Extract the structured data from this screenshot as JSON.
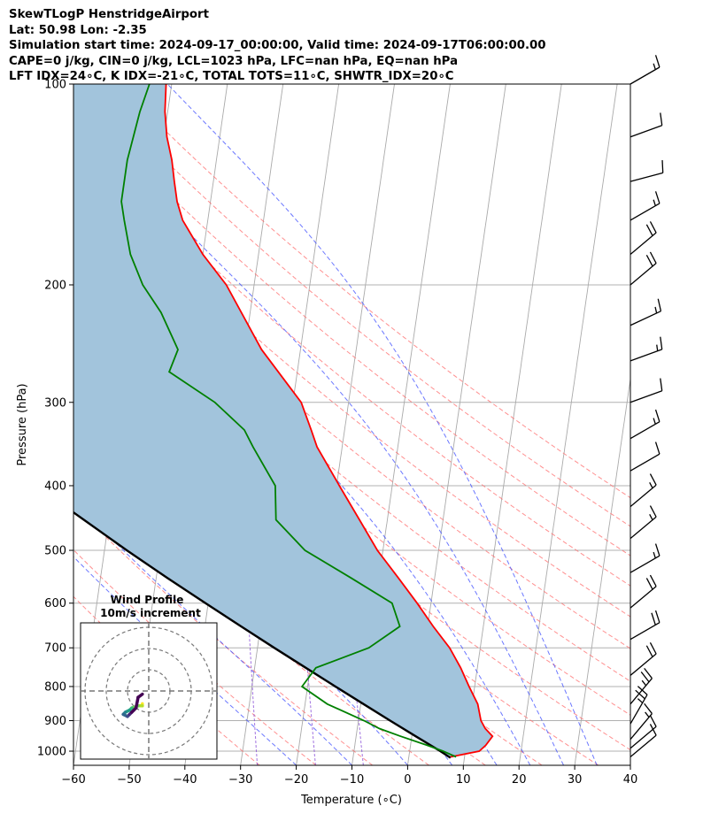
{
  "header": {
    "line1": "SkewTLogP HenstridgeAirport",
    "line2": "Lat: 50.98   Lon: -2.35",
    "line3": "Simulation start time: 2024-09-17_00:00:00, Valid time: 2024-09-17T06:00:00.00",
    "line4": "CAPE=0 j/kg, CIN=0 j/kg, LCL=1023 hPa, LFC=nan hPa, EQ=nan hPa",
    "line5": "LFT IDX=24∘C, K IDX=-21∘C, TOTAL TOTS=11∘C, SHWTR_IDX=20∘C"
  },
  "chart_data": {
    "type": "line",
    "subtype": "skew-t log-p",
    "xlabel": "Temperature (∘C)",
    "ylabel": "Pressure (hPa)",
    "xlim": [
      -60,
      40
    ],
    "ylim": [
      1050,
      100
    ],
    "y_scale": "log",
    "x_ticks": [
      "−60",
      "−50",
      "−40",
      "−30",
      "−20",
      "−10",
      "0",
      "10",
      "20",
      "30",
      "40"
    ],
    "y_ticks": [
      "100",
      "200",
      "300",
      "400",
      "500",
      "600",
      "700",
      "800",
      "900",
      "1000"
    ],
    "grid": true,
    "colors": {
      "temperature": "#ff0000",
      "dewpoint": "#008000",
      "parcel": "#000000",
      "cape_fill": "#a2c4dc",
      "dry_adiabat": "#ff6b6b",
      "moist_adiabat": "#3b4bff",
      "mixing_ratio": "#8a4fd8",
      "isotherm": "#aaaaaa"
    },
    "series": [
      {
        "p": [
          1020,
          1000,
          980,
          950,
          925,
          900,
          850,
          800,
          750,
          700,
          650,
          600,
          550,
          500,
          450,
          400,
          350,
          330,
          300,
          250,
          200,
          180,
          160,
          150,
          140,
          130,
          120,
          110,
          100
        ],
        "t": [
          7.5,
          12.5,
          13.5,
          14.5,
          13,
          12,
          11,
          9,
          7,
          4.5,
          1,
          -2.5,
          -6.5,
          -11,
          -15,
          -19.5,
          -24.5,
          -26,
          -28.5,
          -37,
          -45,
          -50,
          -54.5,
          -56,
          -57,
          -58,
          -59.5,
          -60.5,
          -61
        ]
      },
      {
        "p": [
          1020,
          1000,
          980,
          950,
          925,
          900,
          850,
          800,
          750,
          700,
          650,
          600,
          550,
          500,
          450,
          400,
          350,
          330,
          300,
          270,
          250,
          220,
          200,
          180,
          160,
          150,
          130,
          110,
          100
        ],
        "td": [
          8.5,
          6,
          3,
          -2,
          -6,
          -9,
          -16,
          -21,
          -19,
          -10,
          -5,
          -7,
          -15,
          -24,
          -30,
          -31,
          -36,
          -38,
          -44,
          -53,
          -52,
          -56,
          -60,
          -63,
          -65,
          -66,
          -66,
          -65,
          -64
        ]
      },
      {
        "p": [
          1023,
          1000,
          950,
          900,
          850,
          800,
          750,
          700,
          650,
          600,
          550,
          500,
          450,
          400,
          350,
          300,
          250,
          200,
          150,
          100
        ],
        "parcel": [
          7.5,
          5.5,
          0.7,
          -4.3,
          -9.5,
          -15,
          -20.8,
          -27.0,
          -33.5,
          -40.5,
          -48,
          -56,
          -64.5,
          -74,
          -84.5,
          -96.5,
          -110.5,
          -127.5,
          -149,
          -178
        ]
      }
    ],
    "wind_barbs": {
      "p": [
        100,
        120,
        140,
        160,
        180,
        200,
        230,
        260,
        300,
        340,
        380,
        430,
        480,
        540,
        610,
        680,
        770,
        850,
        910,
        960,
        990,
        1020
      ],
      "speed_kt": [
        15,
        10,
        10,
        15,
        20,
        20,
        15,
        15,
        10,
        15,
        10,
        15,
        15,
        15,
        20,
        20,
        20,
        25,
        25,
        15,
        10,
        10
      ],
      "direction_deg": [
        240,
        250,
        255,
        240,
        230,
        230,
        245,
        250,
        250,
        240,
        240,
        230,
        230,
        240,
        230,
        240,
        230,
        220,
        210,
        220,
        230,
        230
      ]
    },
    "hodograph": {
      "title": "Wind Profile",
      "subtitle": "10m/s increment",
      "u": [
        -3,
        -3,
        -5,
        -8,
        -9,
        -11,
        -12,
        -10,
        -9,
        -8,
        -7,
        -6,
        -5,
        -3
      ],
      "v": [
        -6,
        -7,
        -7,
        -8,
        -9,
        -10,
        -11,
        -12,
        -11,
        -10,
        -9,
        -8,
        -3,
        -1.5
      ]
    }
  }
}
